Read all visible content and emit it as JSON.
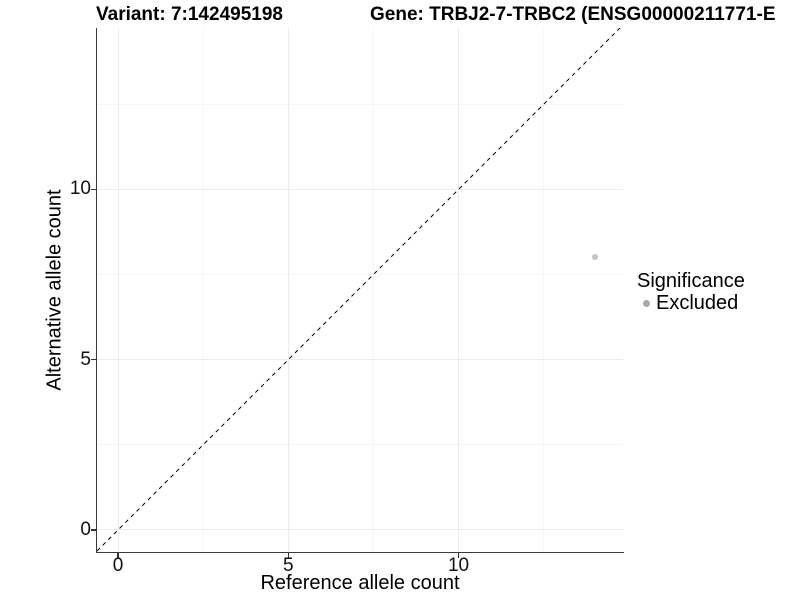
{
  "header": {
    "variant_title": "Variant: 7:142495198",
    "gene_title": "Gene: TRBJ2-7-TRBC2 (ENSG00000211771-E"
  },
  "chart_data": {
    "type": "scatter",
    "title": "",
    "xlabel": "Reference allele count",
    "ylabel": "Alternative allele count",
    "xlim": [
      -0.62,
      14.83
    ],
    "ylim": [
      -0.65,
      14.74
    ],
    "x_major_ticks": [
      0,
      5,
      10
    ],
    "y_major_ticks": [
      0,
      5,
      10
    ],
    "x_minor_gridlines": [
      2.5,
      7.5,
      12.5
    ],
    "y_minor_gridlines": [
      2.5,
      7.5,
      12.5
    ],
    "grid": "major-and-minor-on",
    "identity_line": {
      "slope": 1,
      "intercept": 0,
      "style": "dashed",
      "color": "#000000"
    },
    "series": [
      {
        "name": "Excluded",
        "color": "#c4c4c4",
        "marker": "circle",
        "points": [
          {
            "x": 14,
            "y": 8
          }
        ]
      }
    ],
    "legend": {
      "title": "Significance",
      "position": "right",
      "items": [
        {
          "label": "Excluded",
          "color": "#a9a9a9",
          "marker": "circle"
        }
      ]
    },
    "style": {
      "axis_color": "#3a3a3a",
      "tick_color": "#333333",
      "grid_major_color": "#ececec",
      "grid_minor_color": "#f6f6f6",
      "background": "#ffffff"
    }
  }
}
